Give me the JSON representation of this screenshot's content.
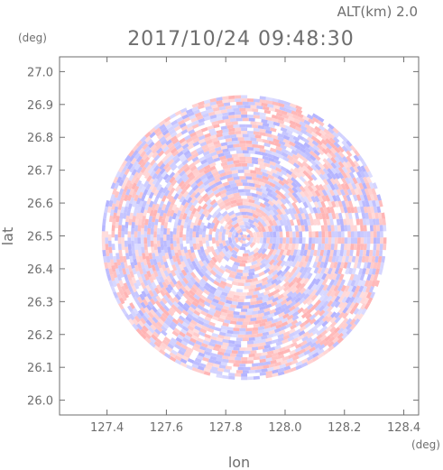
{
  "chart_data": {
    "type": "heatmap",
    "title": "2017/10/24 09:48:30",
    "altitude_label": "ALT(km) 2.0",
    "xlabel": "lon",
    "ylabel": "lat",
    "x_unit": "(deg)",
    "y_unit": "(deg)",
    "xlim": [
      127.24,
      128.45
    ],
    "ylim": [
      25.955,
      27.045
    ],
    "x_ticks": [
      127.4,
      127.6,
      127.8,
      128.0,
      128.2,
      128.4
    ],
    "x_tick_labels": [
      "127.4",
      "127.6",
      "127.8",
      "128.0",
      "128.2",
      "128.4"
    ],
    "y_ticks": [
      26.0,
      26.1,
      26.2,
      26.3,
      26.4,
      26.5,
      26.6,
      26.7,
      26.8,
      26.9,
      27.0
    ],
    "y_tick_labels": [
      "26.0",
      "26.1",
      "26.2",
      "26.3",
      "26.4",
      "26.5",
      "26.6",
      "26.7",
      "26.8",
      "26.9",
      "27.0"
    ],
    "radar_center": {
      "lon": 127.862,
      "lat": 26.495
    },
    "radar_radius_deg": 0.48,
    "colors": {
      "positive": "#ffb4b4",
      "negative": "#b4b4ff",
      "neutral": "#ffffff",
      "axis": "#6e6e6e"
    },
    "grid": false
  }
}
